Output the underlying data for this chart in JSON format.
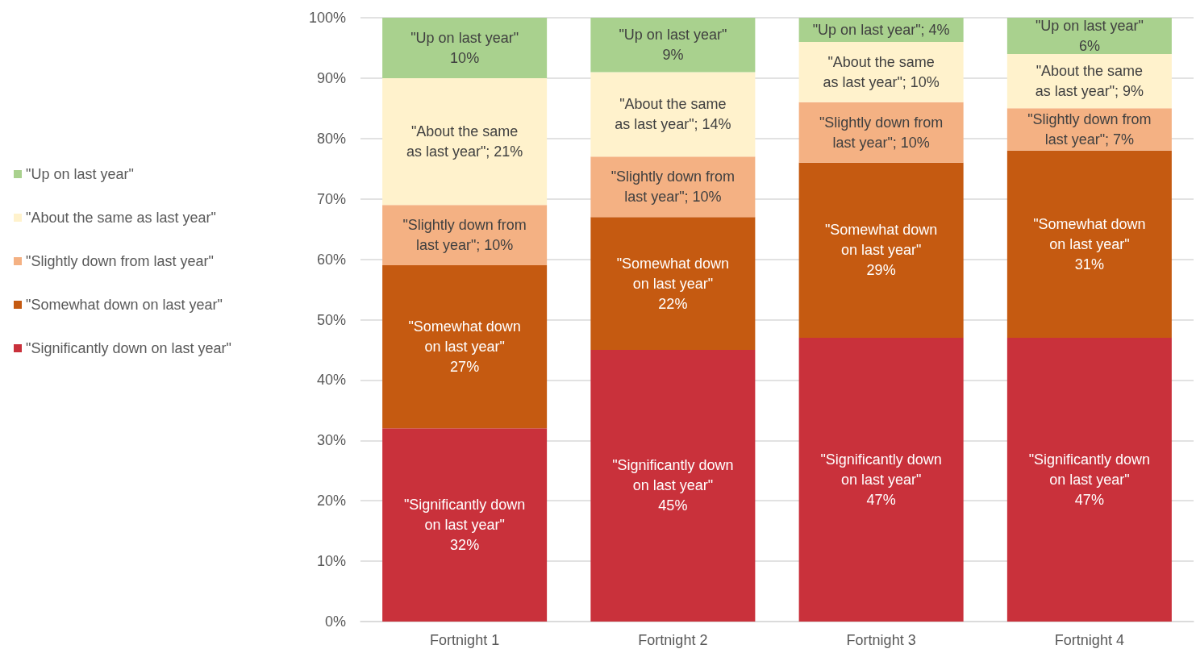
{
  "chart_data": {
    "type": "bar",
    "stacked": true,
    "categories": [
      "Fortnight 1",
      "Fortnight 2",
      "Fortnight 3",
      "Fortnight 4"
    ],
    "series": [
      {
        "name": "\"Significantly down on last year\"",
        "color": "#c9313b",
        "values": [
          32,
          45,
          47,
          47
        ],
        "value_labels": [
          "\"Significantly down\non last year\"\n32%",
          "\"Significantly down\non last year\"\n45%",
          "\"Significantly down\non last year\"\n47%",
          "\"Significantly down\non last year\"\n47%"
        ]
      },
      {
        "name": "\"Somewhat down on last year\"",
        "color": "#c55a11",
        "values": [
          27,
          22,
          29,
          31
        ],
        "value_labels": [
          "\"Somewhat down\non last year\"\n27%",
          "\"Somewhat down\non last year\"\n22%",
          "\"Somewhat down\non last year\"\n29%",
          "\"Somewhat down\non last year\"\n31%"
        ]
      },
      {
        "name": "\"Slightly down from last year\"",
        "color": "#f4b183",
        "values": [
          10,
          10,
          10,
          7
        ],
        "value_labels": [
          "\"Slightly down from\nlast year\"; 10%",
          "\"Slightly down from\nlast year\"; 10%",
          "\"Slightly down from\nlast year\"; 10%",
          "\"Slightly down from\nlast year\"; 7%"
        ]
      },
      {
        "name": "\"About the same as last year\"",
        "color": "#fff2cc",
        "values": [
          21,
          14,
          10,
          9
        ],
        "value_labels": [
          "\"About the same\nas last year\"; 21%",
          "\"About the same\nas last year\"; 14%",
          "\"About the same\nas last year\"; 10%",
          "\"About the same\nas last year\"; 9%"
        ]
      },
      {
        "name": "\"Up on last year\"",
        "color": "#a9d18e",
        "values": [
          10,
          9,
          4,
          6
        ],
        "value_labels": [
          "\"Up on last year\"\n10%",
          "\"Up on last year\"\n9%",
          "\"Up on last year\"; 4%",
          "\"Up on last year\"\n6%"
        ]
      }
    ],
    "ylim": [
      0,
      100
    ],
    "yticks": [
      {
        "value": 0,
        "label": "0%"
      },
      {
        "value": 10,
        "label": "10%"
      },
      {
        "value": 20,
        "label": "20%"
      },
      {
        "value": 30,
        "label": "30%"
      },
      {
        "value": 40,
        "label": "40%"
      },
      {
        "value": 50,
        "label": "50%"
      },
      {
        "value": 60,
        "label": "60%"
      },
      {
        "value": 70,
        "label": "70%"
      },
      {
        "value": 80,
        "label": "80%"
      },
      {
        "value": 90,
        "label": "90%"
      },
      {
        "value": 100,
        "label": "100%"
      }
    ],
    "grid": "y",
    "legend": "left"
  }
}
